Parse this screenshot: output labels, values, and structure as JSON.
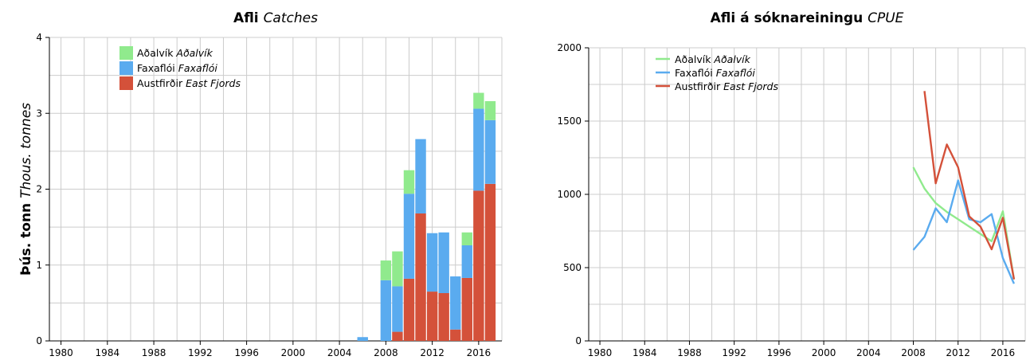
{
  "colors": {
    "Aðalvík": "#90ea8d",
    "Faxaflói": "#5aabef",
    "Austfirðir": "#d4513a",
    "grid": "#cccccc"
  },
  "chart_data": [
    {
      "type": "bar",
      "stacked": true,
      "title": "Afli",
      "title_italic": "Catches",
      "ylabel": "Þús. tonn",
      "ylabel_italic": "Thous. tonnes",
      "xlim": [
        1979,
        2018
      ],
      "ylim": [
        0,
        4
      ],
      "xticks": [
        1980,
        1984,
        1988,
        1992,
        1996,
        2000,
        2004,
        2008,
        2012,
        2016
      ],
      "yticks": [
        0,
        1,
        2,
        3,
        4
      ],
      "grid": true,
      "legend_position": "top-left",
      "x": [
        2006,
        2008,
        2009,
        2010,
        2011,
        2012,
        2013,
        2014,
        2015,
        2016,
        2017
      ],
      "series": [
        {
          "name": "Austfirðir",
          "name_italic": "East Fjords",
          "values": [
            0,
            0,
            0.12,
            0.82,
            1.68,
            0.65,
            0.63,
            0.15,
            0.83,
            1.98,
            2.07
          ]
        },
        {
          "name": "Faxaflói",
          "name_italic": "Faxaflói",
          "values": [
            0.05,
            0.8,
            0.6,
            1.12,
            0.98,
            0.77,
            0.8,
            0.7,
            0.43,
            1.08,
            0.84
          ]
        },
        {
          "name": "Aðalvík",
          "name_italic": "Aðalvík",
          "values": [
            0,
            0.26,
            0.46,
            0.31,
            0,
            0,
            0,
            0,
            0.17,
            0.21,
            0.25
          ]
        }
      ],
      "legend_order": [
        "Aðalvík",
        "Faxaflói",
        "Austfirðir"
      ]
    },
    {
      "type": "line",
      "title": "Afli á sóknareiningu",
      "title_italic": "CPUE",
      "xlim": [
        1979,
        2018
      ],
      "ylim": [
        0,
        2000
      ],
      "xticks": [
        1980,
        1984,
        1988,
        1992,
        1996,
        2000,
        2004,
        2008,
        2012,
        2016
      ],
      "yticks": [
        0,
        500,
        1000,
        1500,
        2000
      ],
      "grid": true,
      "legend_position": "top-left",
      "series": [
        {
          "name": "Aðalvík",
          "name_italic": "Aðalvík",
          "x": [
            2008,
            2009,
            2010,
            2011,
            2012,
            2013,
            2014,
            2015,
            2016,
            2017
          ],
          "y": [
            1185,
            1040,
            940,
            880,
            830,
            780,
            730,
            680,
            885,
            420
          ]
        },
        {
          "name": "Faxaflói",
          "name_italic": "Faxaflói",
          "x": [
            2008,
            2009,
            2010,
            2011,
            2012,
            2013,
            2014,
            2015,
            2016,
            2017
          ],
          "y": [
            620,
            710,
            905,
            810,
            1095,
            830,
            810,
            865,
            565,
            390
          ]
        },
        {
          "name": "Austfirðir",
          "name_italic": "East Fjords",
          "x": [
            2009,
            2010,
            2011,
            2012,
            2013,
            2014,
            2015,
            2016,
            2017
          ],
          "y": [
            1705,
            1075,
            1340,
            1185,
            850,
            780,
            625,
            840,
            420
          ]
        }
      ]
    }
  ]
}
